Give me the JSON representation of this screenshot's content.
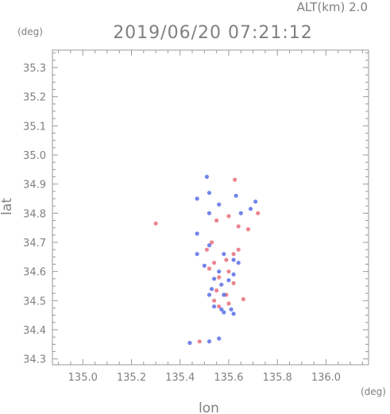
{
  "chart_data": {
    "type": "scatter",
    "title": "2019/06/20 07:21:12",
    "altitude_label": "ALT(km) 2.0",
    "xlabel": "lon",
    "ylabel": "lat",
    "x_unit": "(deg)",
    "y_unit": "(deg)",
    "xlim": [
      134.875,
      136.175
    ],
    "ylim": [
      34.28,
      35.36
    ],
    "x_ticks": [
      "135.0",
      "135.2",
      "135.4",
      "135.6",
      "135.8",
      "136.0"
    ],
    "y_ticks": [
      "34.3",
      "34.4",
      "34.5",
      "34.6",
      "34.7",
      "34.8",
      "34.9",
      "35.0",
      "35.1",
      "35.2",
      "35.3"
    ],
    "grid": false,
    "colors": {
      "positive": "#e8707c",
      "negative": "#5a6ee6",
      "axis": "#999999"
    },
    "series": [
      {
        "values": [
          [
            135.625,
            34.915
          ],
          [
            135.55,
            34.775
          ],
          [
            135.6,
            34.79
          ],
          [
            135.64,
            34.755
          ],
          [
            135.68,
            34.745
          ],
          [
            135.72,
            34.8
          ],
          [
            135.3,
            34.765
          ],
          [
            135.53,
            34.7
          ],
          [
            135.51,
            34.675
          ],
          [
            135.62,
            34.66
          ],
          [
            135.64,
            34.675
          ],
          [
            135.59,
            34.64
          ],
          [
            135.54,
            34.63
          ],
          [
            135.52,
            34.61
          ],
          [
            135.6,
            34.6
          ],
          [
            135.56,
            34.58
          ],
          [
            135.62,
            34.56
          ],
          [
            135.55,
            34.535
          ],
          [
            135.59,
            34.52
          ],
          [
            135.54,
            34.5
          ],
          [
            135.56,
            34.48
          ],
          [
            135.6,
            34.49
          ],
          [
            135.66,
            34.505
          ],
          [
            135.48,
            34.36
          ]
        ]
      },
      {
        "values": [
          [
            135.51,
            34.925
          ],
          [
            135.47,
            34.85
          ],
          [
            135.52,
            34.87
          ],
          [
            135.56,
            34.83
          ],
          [
            135.52,
            34.8
          ],
          [
            135.65,
            34.8
          ],
          [
            135.63,
            34.86
          ],
          [
            135.69,
            34.815
          ],
          [
            135.71,
            34.84
          ],
          [
            135.47,
            34.73
          ],
          [
            135.52,
            34.69
          ],
          [
            135.47,
            34.66
          ],
          [
            135.58,
            34.66
          ],
          [
            135.62,
            34.64
          ],
          [
            135.64,
            34.63
          ],
          [
            135.5,
            34.62
          ],
          [
            135.56,
            34.6
          ],
          [
            135.54,
            34.575
          ],
          [
            135.62,
            34.59
          ],
          [
            135.6,
            34.57
          ],
          [
            135.57,
            34.555
          ],
          [
            135.53,
            34.54
          ],
          [
            135.58,
            34.52
          ],
          [
            135.52,
            34.52
          ],
          [
            135.54,
            34.48
          ],
          [
            135.57,
            34.47
          ],
          [
            135.61,
            34.47
          ],
          [
            135.58,
            34.46
          ],
          [
            135.62,
            34.455
          ],
          [
            135.44,
            34.355
          ],
          [
            135.52,
            34.36
          ],
          [
            135.56,
            34.37
          ]
        ]
      }
    ]
  }
}
